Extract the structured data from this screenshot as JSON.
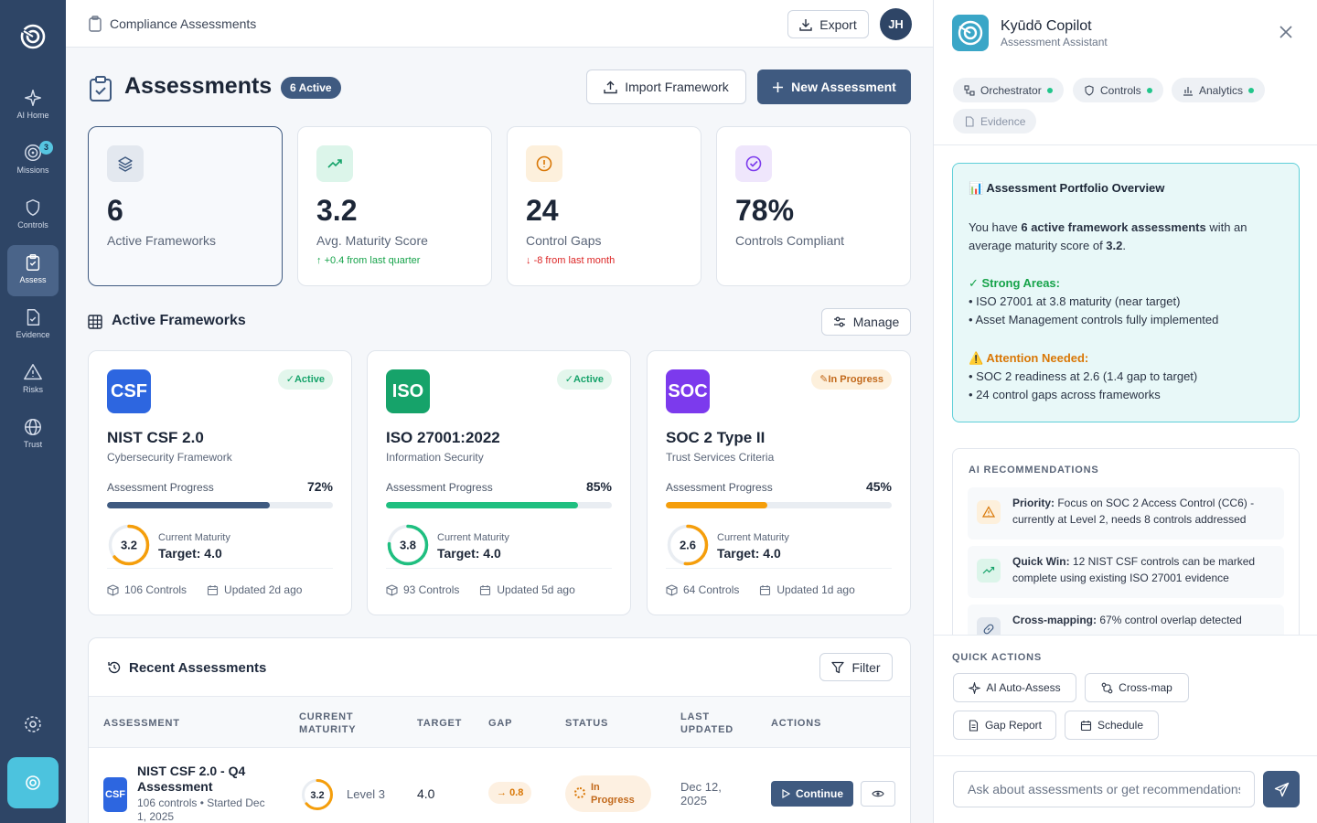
{
  "rail": {
    "items": [
      {
        "label": "AI Home"
      },
      {
        "label": "Missions",
        "badge": "3"
      },
      {
        "label": "Controls"
      },
      {
        "label": "Assess"
      },
      {
        "label": "Evidence"
      },
      {
        "label": "Risks"
      },
      {
        "label": "Trust"
      }
    ]
  },
  "topbar": {
    "breadcrumb": "Compliance Assessments",
    "export_label": "Export",
    "avatar_initials": "JH"
  },
  "page": {
    "title": "Assessments",
    "badge": "6 Active",
    "import_label": "Import Framework",
    "new_label": "New Assessment"
  },
  "stats": [
    {
      "value": "6",
      "label": "Active Frameworks",
      "delta": ""
    },
    {
      "value": "3.2",
      "label": "Avg. Maturity Score",
      "delta": "+0.4 from last quarter",
      "delta_color": "#16a34a"
    },
    {
      "value": "24",
      "label": "Control Gaps",
      "delta": "-8 from last month",
      "delta_color": "#dc2626"
    },
    {
      "value": "78%",
      "label": "Controls Compliant",
      "delta": ""
    }
  ],
  "frameworks_section": {
    "title": "Active Frameworks",
    "manage_label": "Manage"
  },
  "frameworks": [
    {
      "logo": "CSF",
      "logo_color": "#2d66e0",
      "status": "Active",
      "name": "NIST CSF 2.0",
      "subtitle": "Cybersecurity Framework",
      "progress_label": "Assessment Progress",
      "progress": 72,
      "progress_text": "72%",
      "bar_color": "#3f5a80",
      "maturity": "3.2",
      "maturity_level": 3.2,
      "ring_color": "#f59e0b",
      "maturity_label": "Current Maturity",
      "target": "Target: 4.0",
      "controls": "106 Controls",
      "updated": "Updated 2d ago"
    },
    {
      "logo": "ISO",
      "logo_color": "#16a36a",
      "status": "Active",
      "name": "ISO 27001:2022",
      "subtitle": "Information Security",
      "progress_label": "Assessment Progress",
      "progress": 85,
      "progress_text": "85%",
      "bar_color": "#1fbf80",
      "maturity": "3.8",
      "maturity_level": 3.8,
      "ring_color": "#1fbf80",
      "maturity_label": "Current Maturity",
      "target": "Target: 4.0",
      "controls": "93 Controls",
      "updated": "Updated 5d ago"
    },
    {
      "logo": "SOC",
      "logo_color": "#7c3aed",
      "status": "In Progress",
      "name": "SOC 2 Type II",
      "subtitle": "Trust Services Criteria",
      "progress_label": "Assessment Progress",
      "progress": 45,
      "progress_text": "45%",
      "bar_color": "#f59e0b",
      "maturity": "2.6",
      "maturity_level": 2.6,
      "ring_color": "#f59e0b",
      "maturity_label": "Current Maturity",
      "target": "Target: 4.0",
      "controls": "64 Controls",
      "updated": "Updated 1d ago"
    }
  ],
  "recent": {
    "title": "Recent Assessments",
    "filter_label": "Filter",
    "headers": [
      "ASSESSMENT",
      "CURRENT MATURITY",
      "TARGET",
      "GAP",
      "STATUS",
      "LAST UPDATED",
      "ACTIONS"
    ],
    "rows": [
      {
        "logo": "CSF",
        "title": "NIST CSF 2.0 - Q4 Assessment",
        "sub": "106 controls • Started Dec 1, 2025",
        "maturity": "3.2",
        "maturity_level": 3.2,
        "level": "Level 3",
        "target": "4.0",
        "gap": "0.8",
        "status": "In Progress",
        "updated": "Dec 12, 2025",
        "action": "Continue"
      }
    ]
  },
  "copilot": {
    "title": "Kyūdō Copilot",
    "subtitle": "Assessment Assistant",
    "chips": [
      "Orchestrator",
      "Controls",
      "Analytics",
      "Evidence"
    ],
    "overview": {
      "heading": "Assessment Portfolio Overview",
      "intro_1": "You have ",
      "intro_bold": "6 active framework assessments",
      "intro_2": " with an average maturity score of ",
      "intro_score": "3.2",
      "intro_3": ".",
      "strong_heading": "✓ Strong Areas:",
      "strong": [
        "• ISO 27001 at 3.8 maturity (near target)",
        "• Asset Management controls fully implemented"
      ],
      "attention_heading": "⚠️ Attention Needed:",
      "attention": [
        "• SOC 2 readiness at 2.6 (1.4 gap to target)",
        "• 24 control gaps across frameworks"
      ]
    },
    "recs_heading": "AI RECOMMENDATIONS",
    "recs": [
      {
        "bold": "Priority:",
        "text": " Focus on SOC 2 Access Control (CC6) - currently at Level 2, needs 8 controls addressed"
      },
      {
        "bold": "Quick Win:",
        "text": " 12 NIST CSF controls can be marked complete using existing ISO 27001 evidence"
      },
      {
        "bold": "Cross-mapping:",
        "text": " 67% control overlap detected"
      }
    ],
    "quick_heading": "QUICK ACTIONS",
    "quick": [
      "AI Auto-Assess",
      "Cross-map",
      "Gap Report",
      "Schedule"
    ],
    "input_placeholder": "Ask about assessments or get recommendations..."
  }
}
